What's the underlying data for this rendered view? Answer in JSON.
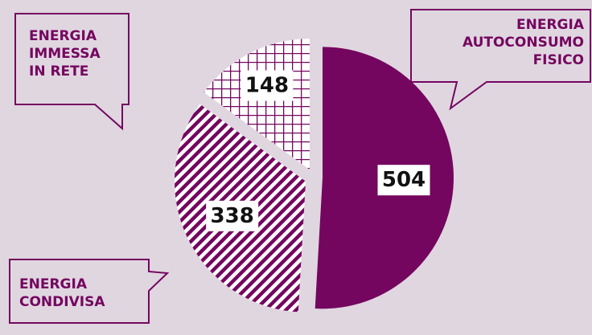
{
  "chart_data": {
    "type": "pie",
    "categories": [
      "ENERGIA AUTOCONSUMO FISICO",
      "ENERGIA CONDIVISA",
      "ENERGIA IMMESSA IN RETE"
    ],
    "values": [
      504,
      338,
      148
    ],
    "color": "#74065f",
    "fills": [
      "solid",
      "diagonal",
      "grid"
    ],
    "exploded": true
  }
}
